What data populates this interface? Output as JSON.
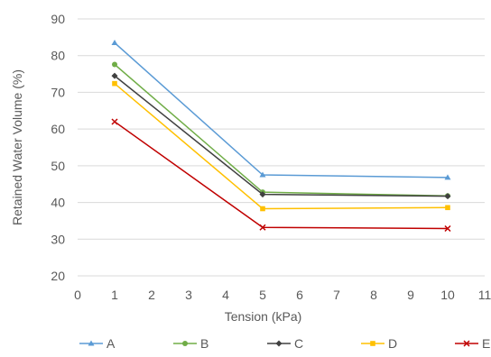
{
  "chart_data": {
    "type": "line",
    "title": "",
    "xlabel": "Tension (kPa)",
    "ylabel": "Retained Water Volume (%)",
    "xlim": [
      0,
      11
    ],
    "ylim": [
      20,
      90
    ],
    "xticks": [
      "0",
      "1",
      "2",
      "3",
      "4",
      "5",
      "6",
      "7",
      "8",
      "9",
      "10",
      "11"
    ],
    "yticks": [
      "20",
      "30",
      "40",
      "50",
      "60",
      "70",
      "80",
      "90"
    ],
    "grid": "horizontal",
    "legend_position": "bottom",
    "x": [
      1,
      5,
      10
    ],
    "series": [
      {
        "name": "A",
        "values": [
          83.5,
          47.5,
          46.8
        ],
        "color": "#5b9bd5",
        "marker": "triangle"
      },
      {
        "name": "B",
        "values": [
          77.6,
          42.8,
          41.8
        ],
        "color": "#70ad47",
        "marker": "circle"
      },
      {
        "name": "C",
        "values": [
          74.5,
          42.2,
          41.7
        ],
        "color": "#404040",
        "marker": "diamond"
      },
      {
        "name": "D",
        "values": [
          72.4,
          38.3,
          38.6
        ],
        "color": "#ffc000",
        "marker": "square"
      },
      {
        "name": "E",
        "values": [
          62.0,
          33.2,
          32.9
        ],
        "color": "#c00000",
        "marker": "x"
      }
    ]
  }
}
